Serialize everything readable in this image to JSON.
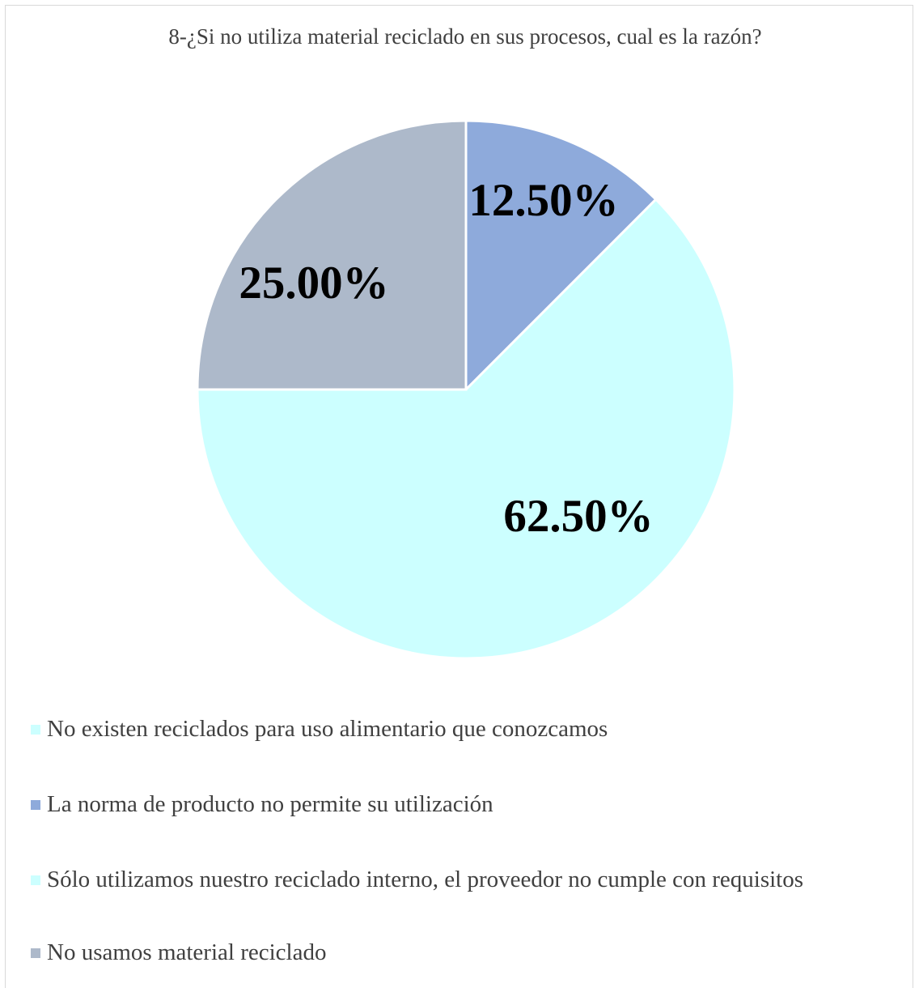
{
  "chart_data": {
    "type": "pie",
    "title": "8-¿Si no utiliza material reciclado en sus procesos, cual es la razón?",
    "slices": [
      {
        "label": "No existen reciclados para uso alimentario que conozcamos",
        "value": 0,
        "data_label": "",
        "color": "#ccffff"
      },
      {
        "label": "La norma de producto no permite su utilización",
        "value": 12.5,
        "data_label": "12.50%",
        "color": "#8eaadb"
      },
      {
        "label": "Sólo utilizamos nuestro reciclado interno, el proveedor no cumple con requisitos",
        "value": 62.5,
        "data_label": "62.50%",
        "color": "#ccffff"
      },
      {
        "label": "No usamos material reciclado",
        "value": 25.0,
        "data_label": "25.00%",
        "color": "#adb9ca"
      }
    ],
    "legend_position": "bottom"
  }
}
